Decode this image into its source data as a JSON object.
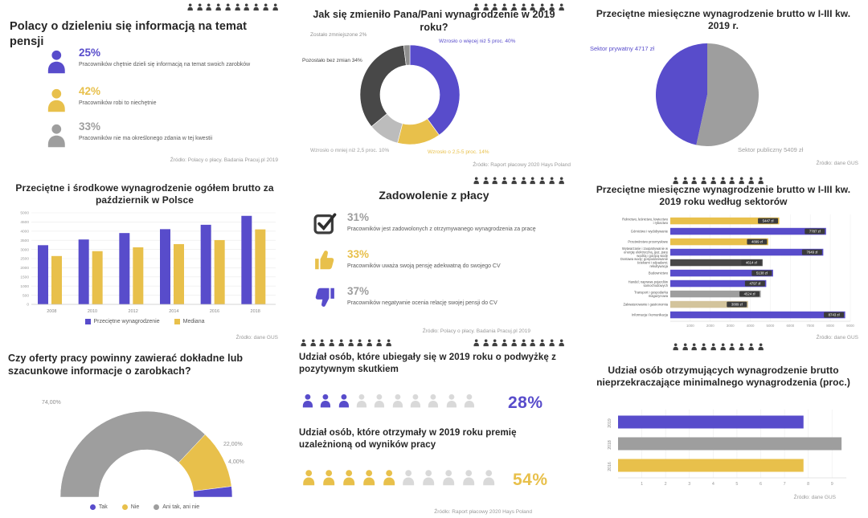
{
  "colors": {
    "purple": "#584ccb",
    "yellow": "#e8c04b",
    "gray": "#9e9e9e",
    "light_gray": "#bcbcbc",
    "mid_gray": "#8f8f8f",
    "dark": "#484848",
    "tan": "#d3c49c",
    "divider": "#3f3f3f",
    "picto_empty": "#d9d9d9"
  },
  "panels": {
    "sharing": {
      "title": "Polacy o dzieleniu się informacją na temat pensji",
      "items": [
        {
          "pct": "25%",
          "text": "Pracowników chętnie dzieli się informacją na temat swoich zarobków",
          "color": "purple",
          "icon": "person-icon"
        },
        {
          "pct": "42%",
          "text": "Pracowników robi to niechętnie",
          "color": "yellow",
          "icon": "person-icon"
        },
        {
          "pct": "33%",
          "text": "Pracowników nie ma określonego zdania w tej kwestii",
          "color": "gray",
          "icon": "person-icon"
        }
      ],
      "source": "Źródło: Polacy o płacy. Badania Pracuj.pl 2019"
    },
    "satisfaction": {
      "title": "Zadowolenie z płacy",
      "items": [
        {
          "pct": "31%",
          "text": "Pracowników jest zadowolonych z otrzymywanego wynagrodzenia za pracę",
          "color": "gray",
          "icon": "checkbox-icon"
        },
        {
          "pct": "33%",
          "text": "Pracowników uważa swoją pensję adekwatną do swojego CV",
          "color": "yellow",
          "icon": "thumbs-up-icon"
        },
        {
          "pct": "37%",
          "text": "Pracowników negatywnie ocenia relację swojej pensji do CV",
          "color": "gray",
          "icon": "thumbs-down-icon"
        }
      ],
      "source": "Źródło: Polacy o płacy. Badania Pracuj.pl 2019"
    }
  },
  "chart_data": [
    {
      "id": "salary_change_2019",
      "type": "pie",
      "subtype": "donut",
      "title": "Jak się zmieniło Pana/Pani wynagrodzenie w 2019 roku?",
      "slices": [
        {
          "label": "Wzrosło o więcej niż 5 proc.",
          "value": 40,
          "color": "purple"
        },
        {
          "label": "Wzrosło o 2,5-5 proc.",
          "value": 14,
          "color": "yellow"
        },
        {
          "label": "Wzrosło o mniej niż 2,5 proc.",
          "value": 10,
          "color": "light_gray"
        },
        {
          "label": "Pozostało bez zmian",
          "value": 34,
          "color": "dark"
        },
        {
          "label": "Zostało zmniejszone",
          "value": 2,
          "color": "mid_gray"
        }
      ],
      "source": "Źródło: Raport płacowy 2020 Hays Poland"
    },
    {
      "id": "sector_pie",
      "type": "pie",
      "title": "Przeciętne miesięczne wynagrodzenie brutto w I-III kw. 2019 r.",
      "slices": [
        {
          "label": "Sektor prywatny",
          "value": 4717,
          "unit": "zł",
          "color": "purple"
        },
        {
          "label": "Sektor publiczny",
          "value": 5409,
          "unit": "zł",
          "color": "gray"
        }
      ],
      "source": "Źródło: dane GUS"
    },
    {
      "id": "avg_median_october",
      "type": "bar",
      "title": "Przeciętne i środkowe wynagrodzenie ogółem brutto za październik w Polsce",
      "categories": [
        "2008",
        "2010",
        "2012",
        "2014",
        "2016",
        "2018"
      ],
      "series": [
        {
          "name": "Przeciętne wynagrodzenie",
          "color": "purple",
          "values": [
            3232,
            3544,
            3896,
            4108,
            4347,
            4835
          ]
        },
        {
          "name": "Mediana",
          "color": "yellow",
          "values": [
            2640,
            2906,
            3116,
            3292,
            3511,
            4095
          ]
        }
      ],
      "ylim": [
        0,
        5000
      ],
      "ytick_step": 500,
      "source": "Źródło: dane GUS"
    },
    {
      "id": "sectors_hbar",
      "type": "bar",
      "orientation": "horizontal",
      "title": "Przeciętne miesięczne wynagrodzenie brutto w I-III kw. 2019 roku według sektorów",
      "rows": [
        {
          "label": "Rolnictwo, leśnictwo, łowiectwo i rybactwo",
          "value": 5447,
          "color": "yellow"
        },
        {
          "label": "Górnictwo i wydobywanie",
          "value": 7787,
          "color": "purple"
        },
        {
          "label": "Przetwórstwo przemysłowe",
          "value": 4899,
          "color": "yellow"
        },
        {
          "label": "Wytwarzanie i zaopatrywanie w energię elektryczną, gaz, parę wodną i gorącą wodę",
          "value": 7649,
          "color": "purple"
        },
        {
          "label": "Dostawa wody; gospodarowanie ściekami i odpadami; rekultywacja",
          "value": 4614,
          "color": "dark"
        },
        {
          "label": "Budownictwo",
          "value": 5138,
          "color": "purple"
        },
        {
          "label": "Handel; naprawa pojazdów samochodowych",
          "value": 4797,
          "color": "purple"
        },
        {
          "label": "Transport i gospodarka magazynowa",
          "value": 4524,
          "color": "gray"
        },
        {
          "label": "Zakwaterowanie i gastronomia",
          "value": 3889,
          "color": "tan"
        },
        {
          "label": "Informacja i komunikacja",
          "value": 8743,
          "color": "purple"
        }
      ],
      "value_suffix": " zł",
      "xlim": [
        0,
        9000
      ],
      "xticks": [
        1000,
        2000,
        3000,
        4000,
        5000,
        6000,
        7000,
        8000,
        9000
      ],
      "source": "Źródło: dane GUS"
    },
    {
      "id": "job_offers_gauge",
      "type": "pie",
      "subtype": "half-donut-gauge",
      "title": "Czy oferty pracy powinny zawierać dokładne lub szacunkowe informacje o zarobkach?",
      "slices": [
        {
          "label": "Ani tak, ani nie",
          "value": 74,
          "display": "74,00%",
          "color": "gray"
        },
        {
          "label": "Nie",
          "value": 22,
          "display": "22,00%",
          "color": "yellow"
        },
        {
          "label": "Tak",
          "value": 4,
          "display": "4,00%",
          "color": "purple"
        }
      ],
      "legend": [
        {
          "label": "Tak",
          "color": "purple"
        },
        {
          "label": "Nie",
          "color": "yellow"
        },
        {
          "label": "Ani tak, ani nie",
          "color": "gray"
        }
      ]
    },
    {
      "id": "raise_pictograph",
      "type": "pictograph",
      "title": "Udział osób, które ubiegały się w 2019 roku o podwyżkę z pozytywnym skutkiem",
      "value": 28,
      "display": "28%",
      "total_icons": 10,
      "color": "purple"
    },
    {
      "id": "bonus_pictograph",
      "type": "pictograph",
      "title": "Udział osób, które otrzymały w 2019 roku premię uzależnioną od wyników pracy",
      "value": 54,
      "display": "54%",
      "total_icons": 10,
      "color": "yellow",
      "source": "Źródło: Raport płacowy 2020 Hays Poland"
    },
    {
      "id": "minimum_wage_share",
      "type": "bar",
      "orientation": "horizontal",
      "title": "Udział osób otrzymujących wynagrodzenie brutto nieprzekraczające minimalnego wynagrodzenia (proc.)",
      "rows": [
        {
          "label": "2019",
          "value": 7.8,
          "color": "purple"
        },
        {
          "label": "2018",
          "value": 9.4,
          "color": "gray"
        },
        {
          "label": "2016",
          "value": 7.8,
          "color": "yellow"
        }
      ],
      "xlim": [
        0,
        9.6
      ],
      "xticks": [
        1,
        2,
        3,
        4,
        5,
        6,
        7,
        8,
        9
      ],
      "source": "Źródło: dane GUS"
    }
  ]
}
